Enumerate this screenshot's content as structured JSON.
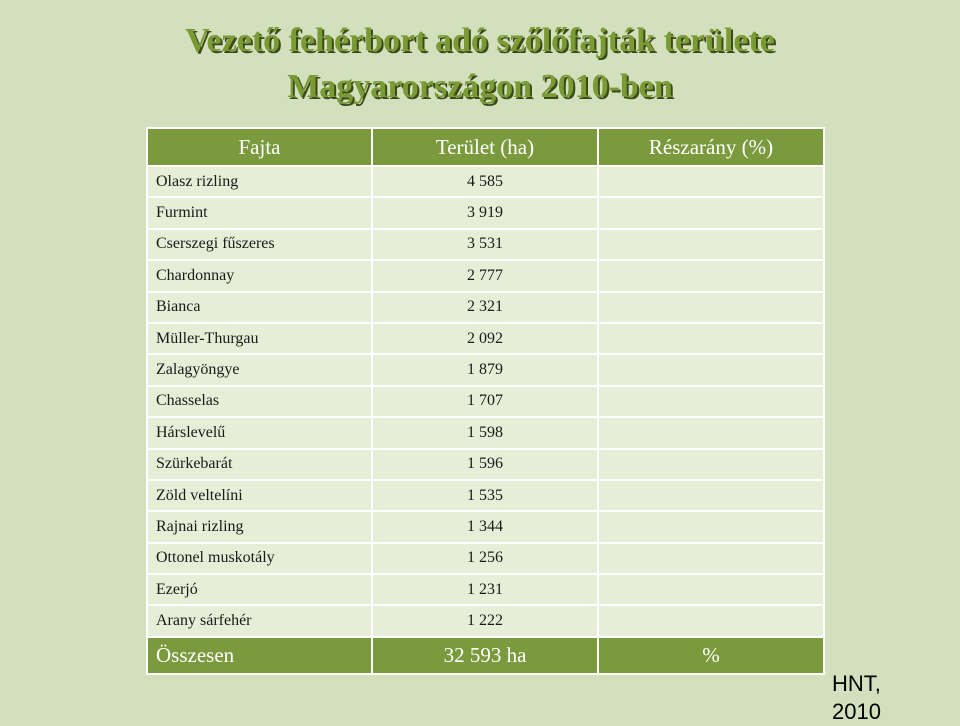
{
  "title": {
    "line1": "Vezető fehérbort adó szőlőfajták területe",
    "line2": "Magyarországon 2010-ben"
  },
  "table": {
    "headers": [
      "Fajta",
      "Terület (ha)",
      "Részarány (%)"
    ],
    "rows": [
      {
        "variety": "Olasz rizling",
        "area": "4 585",
        "share": ""
      },
      {
        "variety": "Furmint",
        "area": "3 919",
        "share": ""
      },
      {
        "variety": "Cserszegi fűszeres",
        "area": "3 531",
        "share": ""
      },
      {
        "variety": "Chardonnay",
        "area": "2 777",
        "share": ""
      },
      {
        "variety": "Bianca",
        "area": "2 321",
        "share": ""
      },
      {
        "variety": "Müller-Thurgau",
        "area": "2 092",
        "share": ""
      },
      {
        "variety": "Zalagyöngye",
        "area": "1 879",
        "share": ""
      },
      {
        "variety": "Chasselas",
        "area": "1 707",
        "share": ""
      },
      {
        "variety": "Hárslevelű",
        "area": "1 598",
        "share": ""
      },
      {
        "variety": "Szürkebarát",
        "area": "1 596",
        "share": ""
      },
      {
        "variety": "Zöld veltelíni",
        "area": "1 535",
        "share": ""
      },
      {
        "variety": "Rajnai rizling",
        "area": "1 344",
        "share": ""
      },
      {
        "variety": "Ottonel muskotály",
        "area": "1 256",
        "share": ""
      },
      {
        "variety": "Ezerjó",
        "area": "1 231",
        "share": ""
      },
      {
        "variety": "Arany sárfehér",
        "area": "1 222",
        "share": ""
      }
    ],
    "total": {
      "label": "Összesen",
      "area": "32 593 ha",
      "share": "%"
    }
  },
  "source": "HNT, 2010",
  "colors": {
    "background": "#d3e0bd",
    "header": "#7a9a3d",
    "row": "#e6eed7",
    "title": "#7a9a34"
  }
}
